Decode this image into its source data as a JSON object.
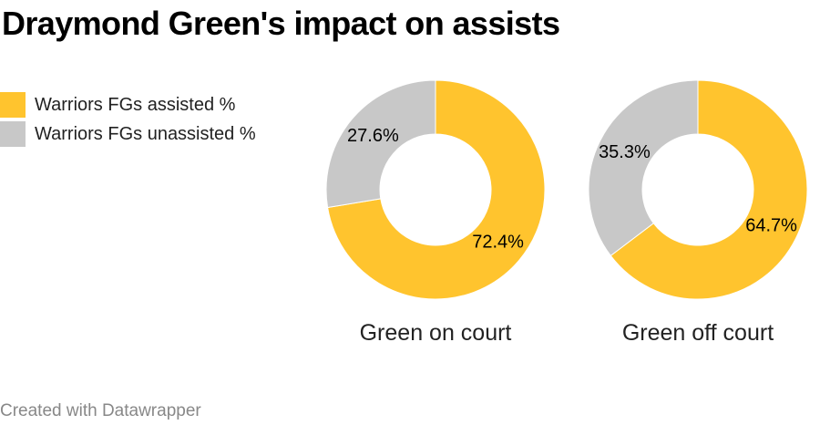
{
  "title": "Draymond Green's impact on assists",
  "footer": "Created with Datawrapper",
  "colors": {
    "assisted": "#ffc42e",
    "unassisted": "#c8c8c8"
  },
  "legend": [
    {
      "label": "Warriors FGs assisted %",
      "color": "#ffc42e"
    },
    {
      "label": "Warriors FGs unassisted %",
      "color": "#c8c8c8"
    }
  ],
  "chart_data": {
    "type": "pie",
    "variant": "donut",
    "legend_placement": "left",
    "series_names": [
      "Warriors FGs assisted %",
      "Warriors FGs unassisted %"
    ],
    "pies": [
      {
        "label": "Green on court",
        "values": [
          72.4,
          27.6
        ],
        "value_labels": [
          "72.4%",
          "27.6%"
        ]
      },
      {
        "label": "Green off court",
        "values": [
          64.7,
          35.3
        ],
        "value_labels": [
          "64.7%",
          "35.3%"
        ]
      }
    ]
  }
}
